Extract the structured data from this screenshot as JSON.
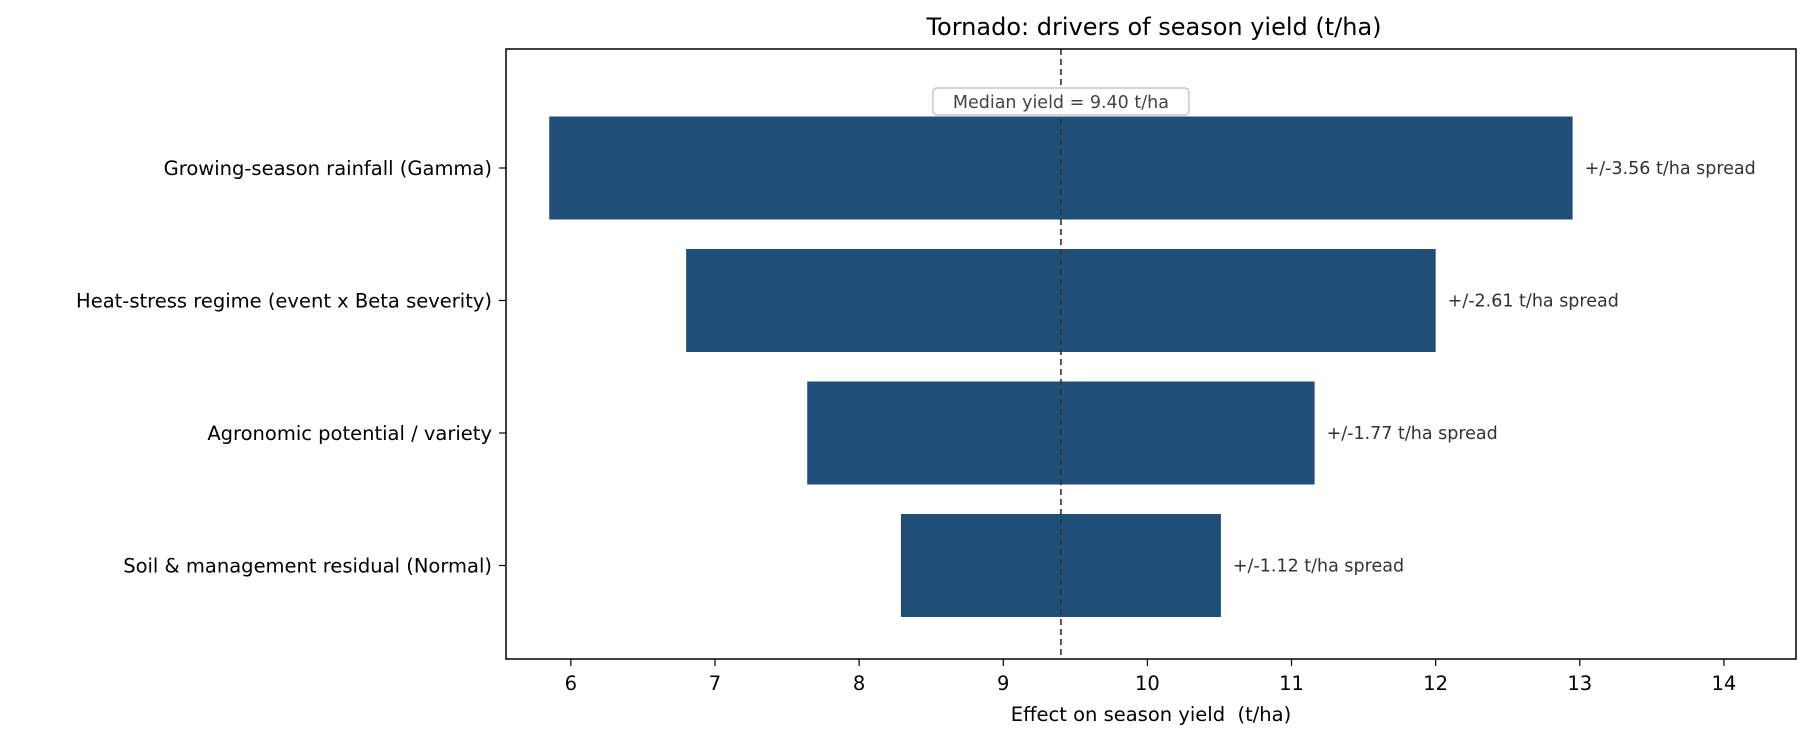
{
  "chart_data": {
    "type": "bar",
    "orientation": "horizontal",
    "subtype": "tornado",
    "title": "Tornado: drivers of season yield (t/ha)",
    "xlabel": "Effect on season yield  (t/ha)",
    "ylabel": "",
    "xlim": [
      5.55,
      14.5
    ],
    "x_ticks": [
      "6",
      "7",
      "8",
      "9",
      "10",
      "11",
      "12",
      "13",
      "14"
    ],
    "bar_color": "#1f4e79",
    "median": {
      "value": 9.4,
      "label": "Median yield = 9.40 t/ha"
    },
    "bars": [
      {
        "category": "Growing-season rainfall (Gamma)",
        "low": 5.85,
        "high": 12.95,
        "label": "+/-3.56 t/ha spread"
      },
      {
        "category": "Heat-stress regime (event x Beta severity)",
        "low": 6.8,
        "high": 12.0,
        "label": "+/-2.61 t/ha spread"
      },
      {
        "category": "Agronomic potential / variety",
        "low": 7.64,
        "high": 11.16,
        "label": "+/-1.77 t/ha spread"
      },
      {
        "category": "Soil & management residual (Normal)",
        "low": 8.29,
        "high": 10.51,
        "label": "+/-1.12 t/ha spread"
      }
    ]
  }
}
